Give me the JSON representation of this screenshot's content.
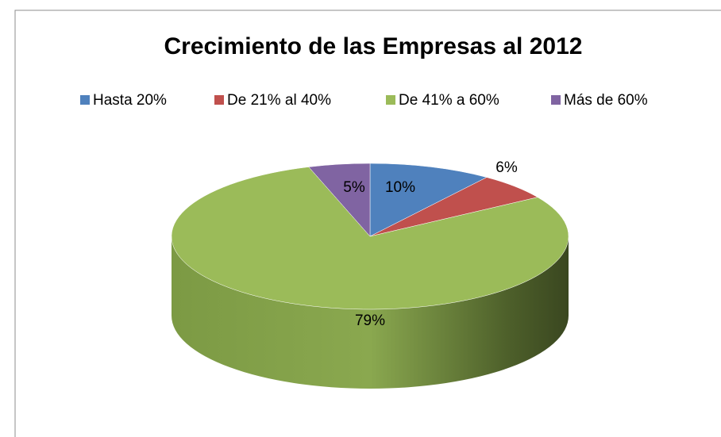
{
  "chart_data": {
    "type": "pie3d",
    "title": "Crecimiento de las Empresas al 2012",
    "categories": [
      "Hasta 20%",
      "De 21% al 40%",
      "De 41% a 60%",
      "Más de 60%"
    ],
    "values": [
      10,
      6,
      79,
      5
    ],
    "value_labels": [
      "10%",
      "6%",
      "79%",
      "5%"
    ],
    "colors": [
      "#4f81bd",
      "#c0504d",
      "#9bbb59",
      "#8064a2"
    ],
    "legend": "top"
  }
}
